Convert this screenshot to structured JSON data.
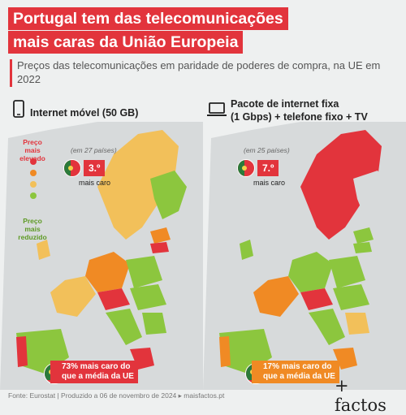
{
  "title": {
    "line1": "Portugal tem das telecomunicações",
    "line2": "mais caras da União Europeia"
  },
  "subtitle": "Preços das telecomunicações em paridade de poderes de compra, na UE em 2022",
  "maps": [
    {
      "icon": "mobile-phone-icon",
      "heading": "Internet móvel (50 GB)",
      "count": "(em 27 países)",
      "rank": "3.º",
      "rank_note": "mais caro",
      "comparison_pct": "73%",
      "comparison_text_1": "mais caro do",
      "comparison_text_2": "que a média da UE",
      "comparison_color": "#e2343c"
    },
    {
      "icon": "laptop-icon",
      "heading_line1": "Pacote de internet fixa",
      "heading_line2": "(1 Gbps) + telefone fixo + TV",
      "count": "(em 25 países)",
      "rank": "7.º",
      "rank_note": "mais caro",
      "comparison_pct": "17%",
      "comparison_text_1": "mais caro do",
      "comparison_text_2": "que a média da UE",
      "comparison_color": "#f08a24"
    }
  ],
  "legend": {
    "high": "Preço mais elevado",
    "low": "Preço mais reduzido",
    "colors": [
      "#e2343c",
      "#f08a24",
      "#f2c05a",
      "#8cc63e"
    ]
  },
  "footer": "Fonte: Eurostat | Produzido a 06 de novembro de 2024 ▸ maisfactos.pt",
  "logo": "+ factos"
}
